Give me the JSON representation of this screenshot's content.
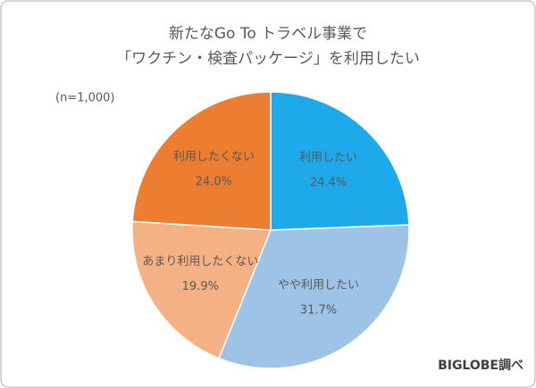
{
  "chart_data": {
    "type": "pie",
    "title": [
      "新たなGo To トラベル事業で",
      "「ワクチン・検査パッケージ」を利用したい"
    ],
    "annotation": "(n=1,000)",
    "source": "BIGLOBE調べ",
    "categories": [
      "利用したい",
      "やや利用したい",
      "あまり利用したくない",
      "利用したくない"
    ],
    "values": [
      24.4,
      31.7,
      19.9,
      24.0
    ],
    "value_labels": [
      "24.4%",
      "31.7%",
      "19.9%",
      "24.0%"
    ],
    "colors": [
      "#1eaaea",
      "#9dc3e6",
      "#f4b183",
      "#ed7d31"
    ]
  }
}
